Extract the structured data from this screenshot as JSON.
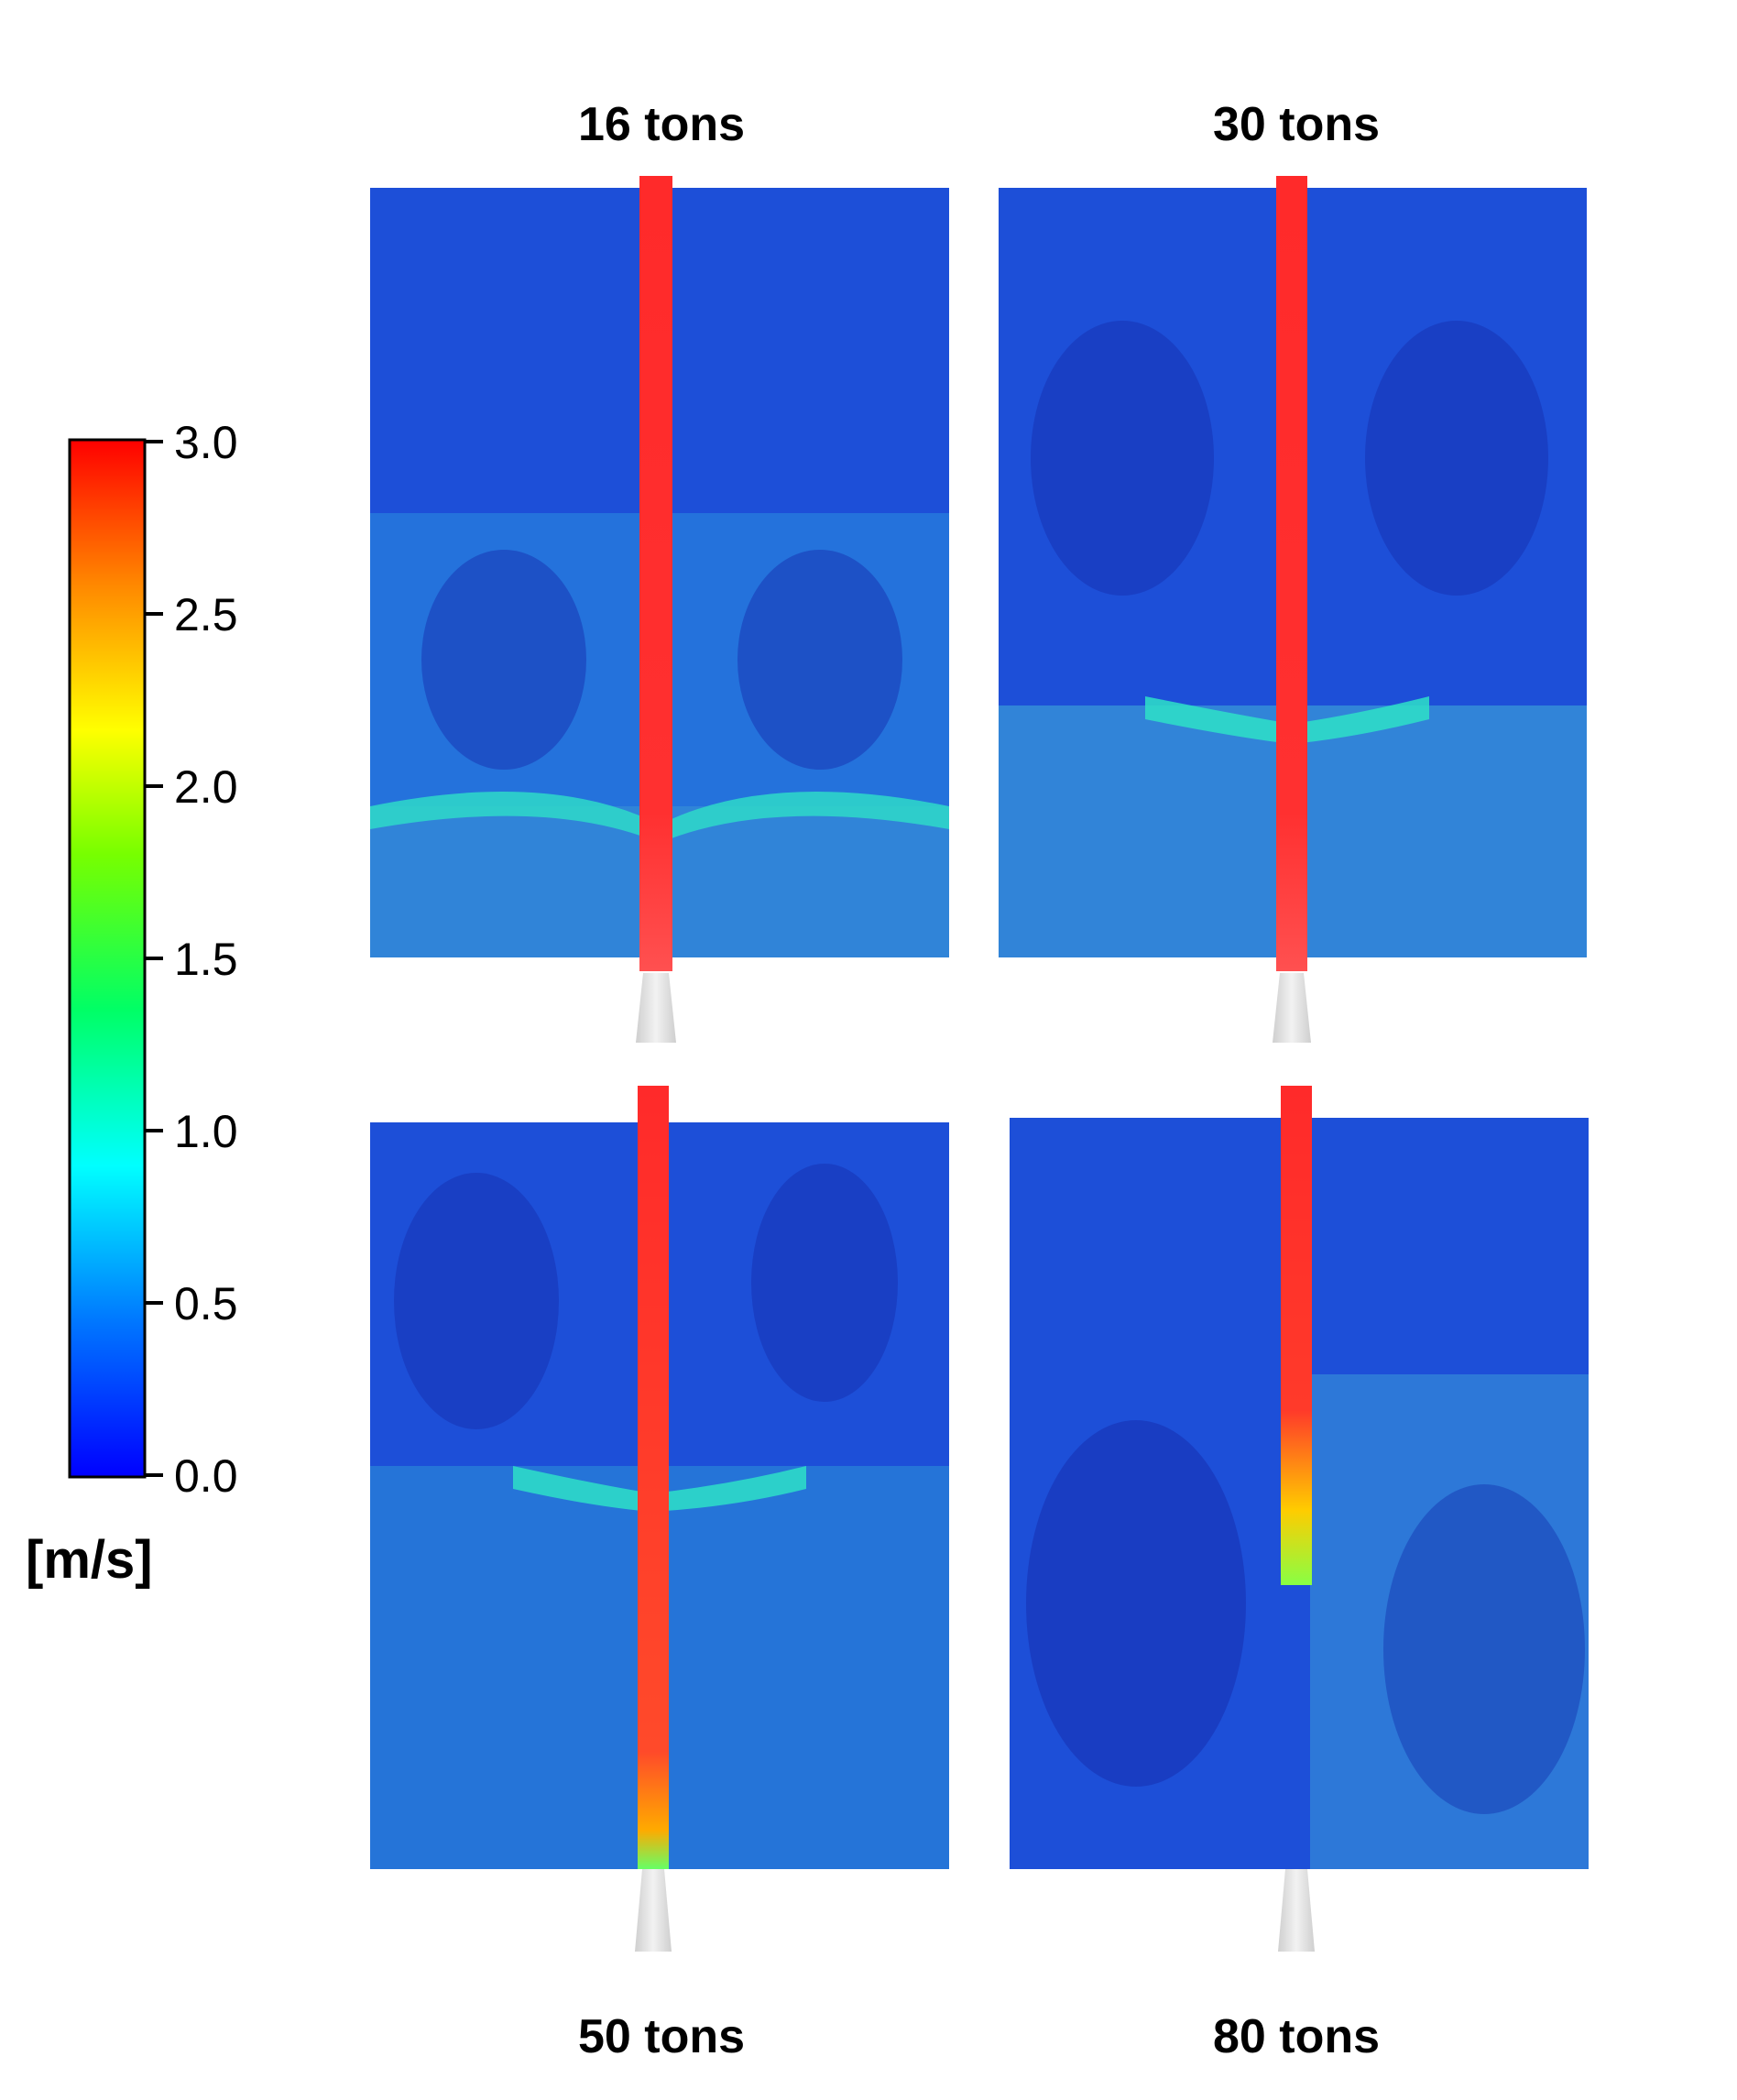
{
  "panels": [
    {
      "title": "16 tons"
    },
    {
      "title": "30 tons"
    },
    {
      "title": "50 tons"
    },
    {
      "title": "80 tons"
    }
  ],
  "colorbar": {
    "unit": "[m/s]",
    "min": 0.0,
    "max": 3.0,
    "ticks": [
      "3.0",
      "2.5",
      "2.0",
      "1.5",
      "1.0",
      "0.5",
      "0.0"
    ],
    "colors": [
      "#0000ff",
      "#0077ff",
      "#00ffff",
      "#00ff66",
      "#77ff00",
      "#ffff00",
      "#ff8800",
      "#ff0000"
    ]
  }
}
